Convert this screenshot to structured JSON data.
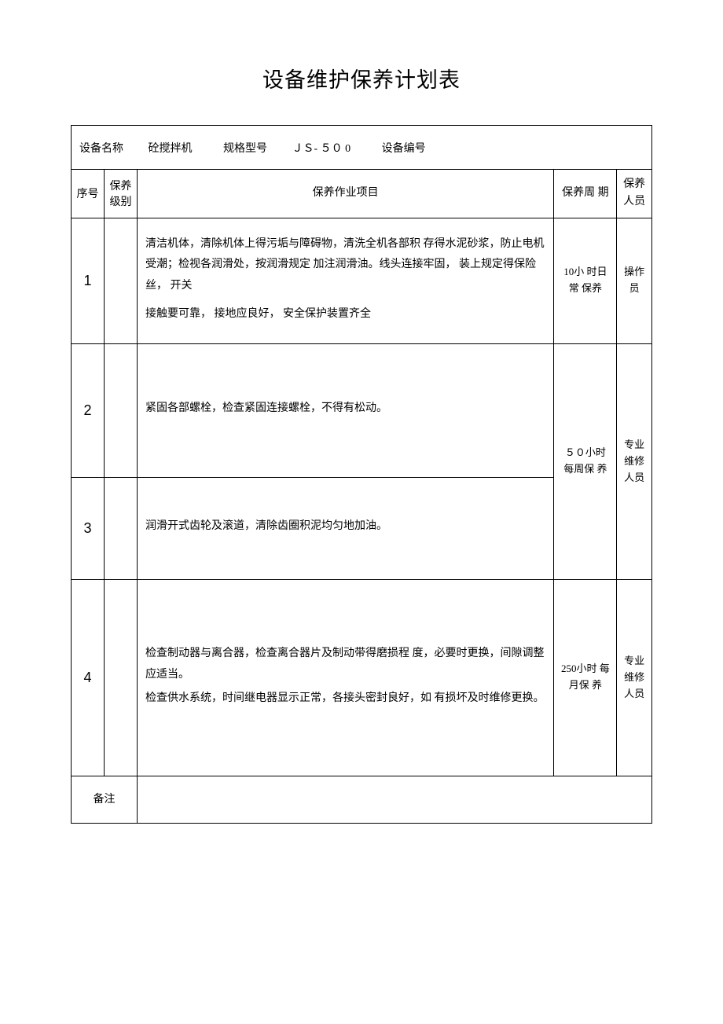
{
  "title": "设备维护保养计划表",
  "info": {
    "equipment_name_label": "设备名称",
    "equipment_name_value": "砼搅拌机",
    "spec_model_label": "规格型号",
    "spec_model_value": "ＪＳ- ５０ 0",
    "equipment_no_label": "设备编号",
    "equipment_no_value": ""
  },
  "headers": {
    "seq": "序号",
    "level": "保养级别",
    "content": "保养作业项目",
    "cycle": "保养周 期",
    "person": "保养人员"
  },
  "rows": [
    {
      "seq": "1",
      "level": "",
      "content_line1": "清洁机体，清除机体上得污垢与障碍物，清洗全机各部积 存得水泥砂浆，防止电机受潮；检视各润滑处，按润滑规定 加注润滑油。线头连接牢固， 装上规定得保险丝， 开关",
      "content_line2": "接触要可靠， 接地应良好， 安全保护装置齐全",
      "cycle": "10小 时日 常 保养",
      "person": "操作 员"
    },
    {
      "seq": "2",
      "level": "",
      "content_line1": "紧固各部螺栓，检查紧固连接螺栓，不得有松动。",
      "content_line2": "",
      "cycle": "",
      "person": ""
    },
    {
      "seq": "3",
      "level": "",
      "content_line1": "润滑开式齿轮及滚道，清除齿圈积泥均匀地加油。",
      "content_line2": "",
      "cycle": "",
      "person": ""
    },
    {
      "seq": "4",
      "level": "",
      "content_line1": "检查制动器与离合器，检查离合器片及制动带得磨损程 度，必要时更换，间隙调整应适当。",
      "content_line2": "检查供水系统，时间继电器显示正常，各接头密封良好，如 有损坏及时维修更换。",
      "cycle": "250小时 每月保 养",
      "person": "专业 维修 人员"
    }
  ],
  "merged_cycle_23": "５０小时 每周保 养",
  "merged_person_23": "专业 维修 人员",
  "remark_label": "备注",
  "remark_value": "",
  "styling": {
    "background_color": "#ffffff",
    "text_color": "#000000",
    "border_color": "#000000",
    "title_fontsize": 27,
    "body_fontsize": 14,
    "font_family": "SimSun"
  }
}
